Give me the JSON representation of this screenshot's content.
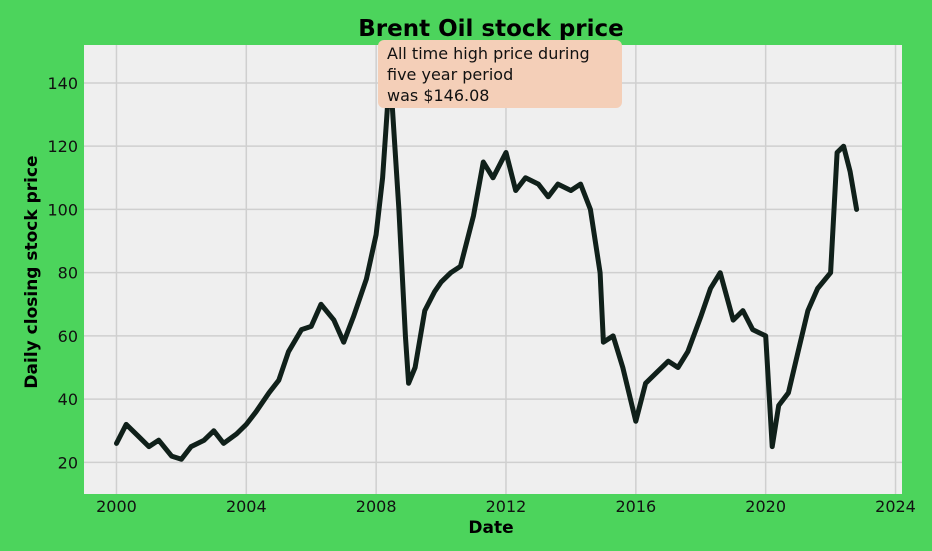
{
  "chart_data": {
    "type": "line",
    "title": "Brent Oil stock price",
    "xlabel": "Date",
    "ylabel": "Daily closing stock price",
    "xlim": [
      1999,
      2024.2
    ],
    "ylim": [
      10,
      152
    ],
    "xticks": [
      2000,
      2004,
      2008,
      2012,
      2016,
      2020,
      2024
    ],
    "yticks": [
      20,
      40,
      60,
      80,
      100,
      120,
      140
    ],
    "grid": true,
    "annotation": {
      "lines": [
        "All time high price during",
        "five year period",
        "was $146.08"
      ],
      "value": 146.08,
      "x": 2008.5
    },
    "series": [
      {
        "color": "#10201a",
        "x": [
          2000.0,
          2000.3,
          2000.7,
          2001.0,
          2001.3,
          2001.7,
          2002.0,
          2002.3,
          2002.7,
          2003.0,
          2003.3,
          2003.7,
          2004.0,
          2004.3,
          2004.7,
          2005.0,
          2005.3,
          2005.7,
          2006.0,
          2006.3,
          2006.7,
          2007.0,
          2007.3,
          2007.7,
          2008.0,
          2008.2,
          2008.4,
          2008.5,
          2008.7,
          2008.9,
          2009.0,
          2009.2,
          2009.5,
          2009.8,
          2010.0,
          2010.3,
          2010.6,
          2011.0,
          2011.3,
          2011.6,
          2012.0,
          2012.3,
          2012.6,
          2013.0,
          2013.3,
          2013.6,
          2014.0,
          2014.3,
          2014.6,
          2014.9,
          2015.0,
          2015.3,
          2015.6,
          2016.0,
          2016.3,
          2016.6,
          2017.0,
          2017.3,
          2017.6,
          2018.0,
          2018.3,
          2018.6,
          2019.0,
          2019.3,
          2019.6,
          2020.0,
          2020.2,
          2020.4,
          2020.7,
          2021.0,
          2021.3,
          2021.6,
          2022.0,
          2022.2,
          2022.4,
          2022.6,
          2022.8
        ],
        "y": [
          26,
          32,
          28,
          25,
          27,
          22,
          21,
          25,
          27,
          30,
          26,
          29,
          32,
          36,
          42,
          46,
          55,
          62,
          63,
          70,
          65,
          58,
          66,
          78,
          92,
          110,
          140,
          132,
          100,
          60,
          45,
          50,
          68,
          74,
          77,
          80,
          82,
          98,
          115,
          110,
          118,
          106,
          110,
          108,
          104,
          108,
          106,
          108,
          100,
          80,
          58,
          60,
          50,
          33,
          45,
          48,
          52,
          50,
          55,
          66,
          75,
          80,
          65,
          68,
          62,
          60,
          25,
          38,
          42,
          55,
          68,
          75,
          80,
          118,
          120,
          112,
          100
        ]
      }
    ]
  }
}
